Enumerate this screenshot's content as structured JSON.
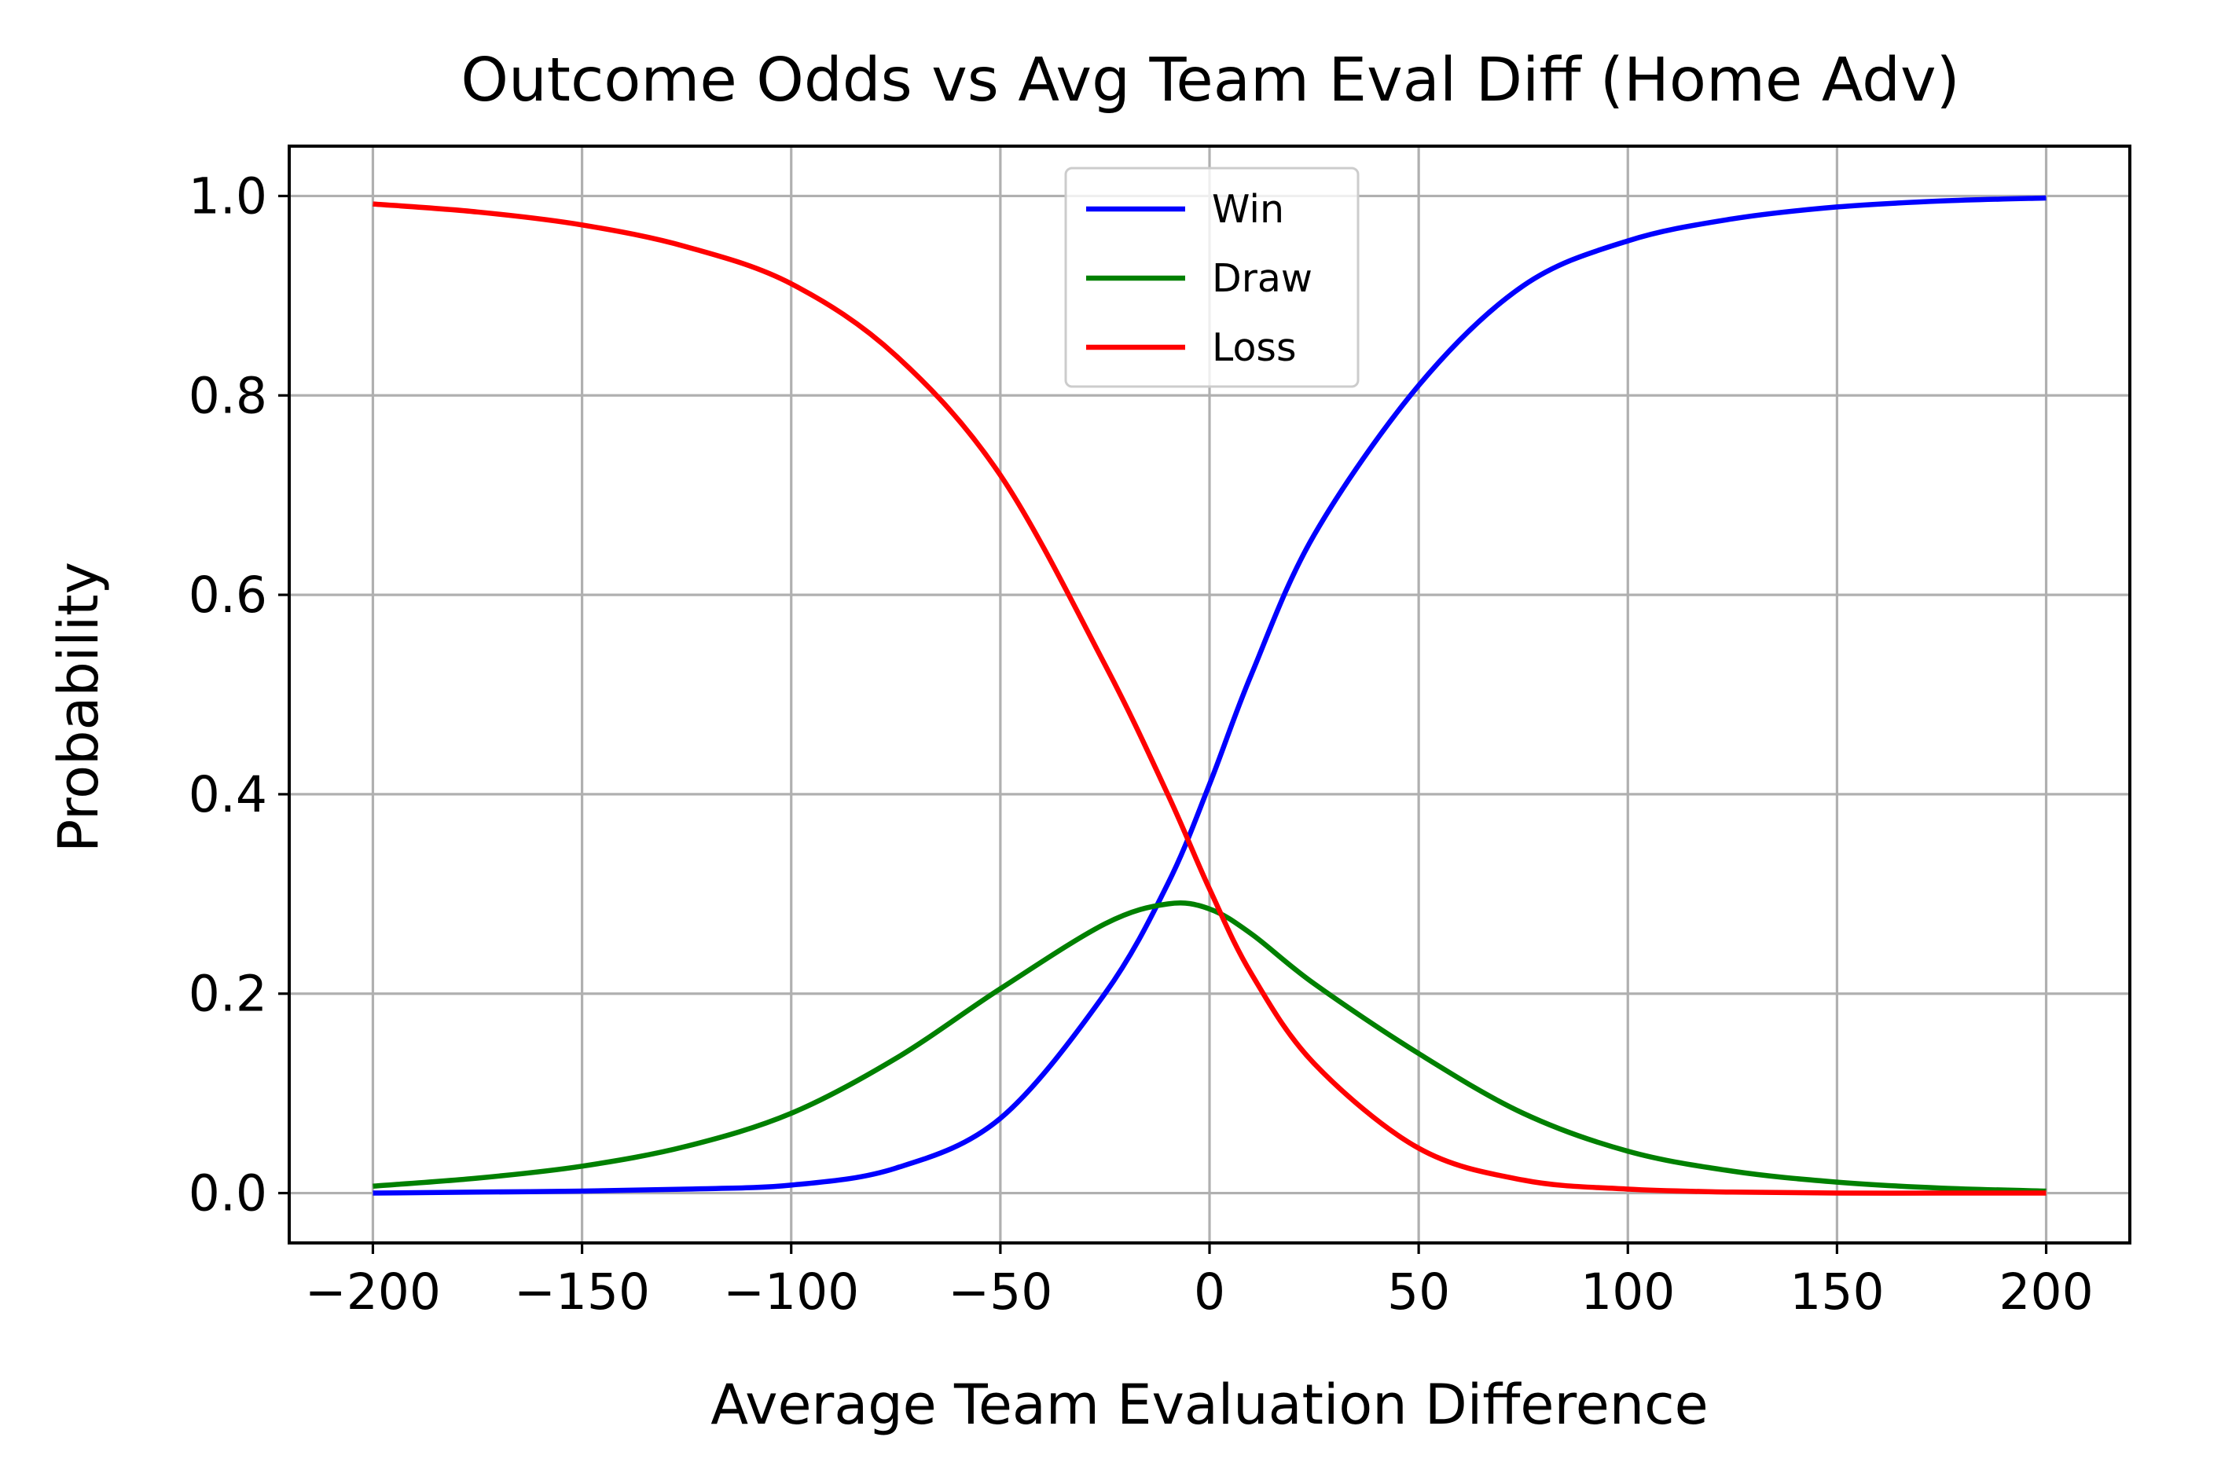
{
  "chart_data": {
    "type": "line",
    "title": "Outcome Odds vs Avg Team Eval Diff (Home Adv)",
    "xlabel": "Average Team Evaluation Difference",
    "ylabel": "Probability",
    "xlim": [
      -220,
      220
    ],
    "ylim": [
      -0.05,
      1.05
    ],
    "xticks": [
      -200,
      -150,
      -100,
      -50,
      0,
      50,
      100,
      150,
      200
    ],
    "xtick_labels": [
      "−200",
      "−150",
      "−100",
      "−50",
      "0",
      "50",
      "100",
      "150",
      "200"
    ],
    "yticks": [
      0.0,
      0.2,
      0.4,
      0.6,
      0.8,
      1.0
    ],
    "ytick_labels": [
      "0.0",
      "0.2",
      "0.4",
      "0.6",
      "0.8",
      "1.0"
    ],
    "grid": true,
    "legend_position": "upper center",
    "x": [
      -200,
      -175,
      -150,
      -125,
      -100,
      -75,
      -50,
      -25,
      -10,
      0,
      10,
      25,
      50,
      75,
      100,
      125,
      150,
      175,
      200
    ],
    "series": [
      {
        "name": "Win",
        "color": "#0000ff",
        "values": [
          0.0,
          0.001,
          0.002,
          0.004,
          0.008,
          0.025,
          0.075,
          0.2,
          0.31,
          0.41,
          0.52,
          0.66,
          0.81,
          0.91,
          0.955,
          0.977,
          0.989,
          0.995,
          0.998
        ]
      },
      {
        "name": "Draw",
        "color": "#008000",
        "values": [
          0.007,
          0.015,
          0.027,
          0.047,
          0.08,
          0.135,
          0.205,
          0.27,
          0.29,
          0.285,
          0.26,
          0.21,
          0.14,
          0.08,
          0.042,
          0.022,
          0.011,
          0.005,
          0.002
        ]
      },
      {
        "name": "Loss",
        "color": "#ff0000",
        "values": [
          0.992,
          0.984,
          0.971,
          0.949,
          0.912,
          0.84,
          0.72,
          0.53,
          0.4,
          0.305,
          0.22,
          0.13,
          0.045,
          0.013,
          0.004,
          0.001,
          0.0,
          0.0,
          0.0
        ]
      }
    ]
  }
}
